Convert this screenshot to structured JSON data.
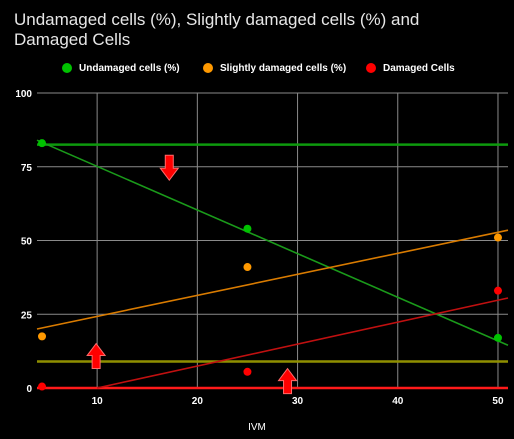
{
  "chart_data": {
    "type": "scatter",
    "title": "Undamaged cells (%), Slightly damaged cells (%) and Damaged Cells",
    "xlabel": "IVM",
    "ylabel": "",
    "xlim": [
      4,
      51
    ],
    "ylim": [
      0,
      100
    ],
    "xticks": [
      "10",
      "20",
      "30",
      "40",
      "50"
    ],
    "yticks": [
      "0",
      "25",
      "50",
      "75",
      "100"
    ],
    "grid": true,
    "legend_position": "top",
    "series": [
      {
        "name": "Undamaged cells (%)",
        "color": "#00c200",
        "x": [
          4.5,
          25,
          50
        ],
        "y": [
          83,
          54,
          17
        ],
        "trendline": {
          "from": [
            4,
            84
          ],
          "to": [
            51,
            14.5
          ]
        },
        "hline": 82.5,
        "hline_color": "#0d9a0d"
      },
      {
        "name": "Slightly damaged cells (%)",
        "color": "#ff9900",
        "x": [
          4.5,
          25,
          50
        ],
        "y": [
          17.5,
          41,
          51
        ],
        "trendline": {
          "from": [
            4,
            20
          ],
          "to": [
            51,
            53.5
          ]
        },
        "hline": 9,
        "hline_color": "#8f8f00"
      },
      {
        "name": "Damaged Cells",
        "color": "#ff0000",
        "x": [
          4.5,
          25,
          50
        ],
        "y": [
          0.5,
          5.5,
          33
        ],
        "trendline": {
          "from": [
            10,
            0
          ],
          "to": [
            51,
            30.5
          ]
        },
        "hline": 0,
        "hline_color": "#ff1a1a"
      }
    ],
    "annotations": [
      {
        "icon": "down-arrow-icon",
        "x": 17.2,
        "y": 74.5
      },
      {
        "icon": "up-arrow-icon",
        "x": 9.9,
        "y": 11
      },
      {
        "icon": "up-arrow-icon",
        "x": 29,
        "y": 2.5
      }
    ]
  }
}
